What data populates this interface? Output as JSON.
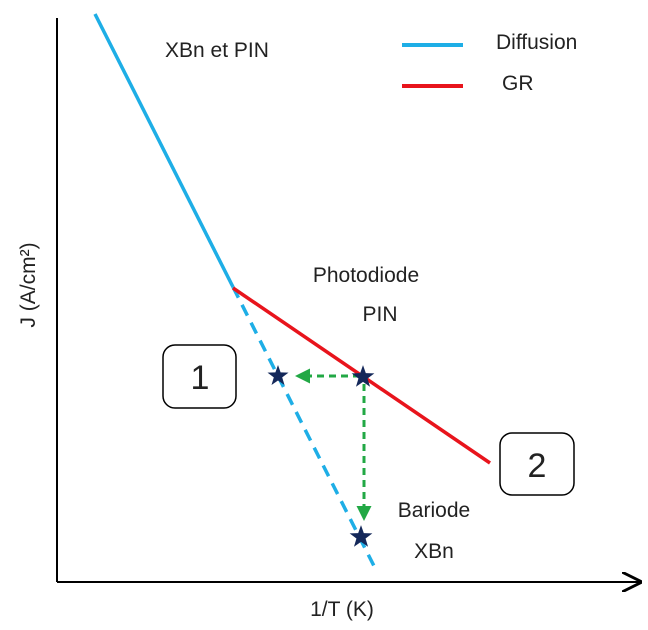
{
  "title": "XBn et PIN",
  "legend": [
    {
      "label": "Diffusion",
      "color": "#1eaee6"
    },
    {
      "label": "GR",
      "color": "#e8141c"
    }
  ],
  "axes": {
    "x_label": "1/T (K)",
    "y_label": "J (A/cm²)"
  },
  "annotations": {
    "pin_line1": "Photodiode",
    "pin_line2": "PIN",
    "xbn_line1": "Bariode",
    "xbn_line2": "XBn",
    "box1": "1",
    "box2": "2"
  },
  "colors": {
    "diffusion": "#1eaee6",
    "gr": "#e8141c",
    "arrow": "#22a845",
    "star": "#14285a",
    "axis": "#000000"
  },
  "icons": {
    "marker": "star-icon"
  }
}
